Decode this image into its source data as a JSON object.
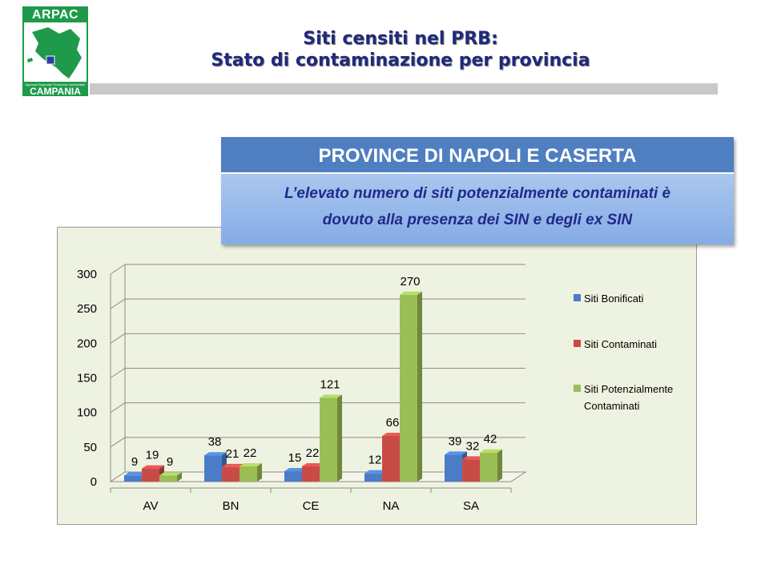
{
  "logo": {
    "top_text": "ARPAC",
    "agency_text": "Agenzia Regionale Protezione Ambientale",
    "bottom_text": "CAMPANIA"
  },
  "title": {
    "line1": "Siti censiti nel PRB:",
    "line2": "Stato di contaminazione per provincia"
  },
  "callout": {
    "heading": "PROVINCE DI NAPOLI E CASERTA",
    "body_line1": "L’elevato numero di siti potenzialmente contaminati è",
    "body_line2": "dovuto alla presenza dei SIN e degli ex SIN"
  },
  "colors": {
    "series": [
      "#4a7cc7",
      "#c94b47",
      "#9bbd56"
    ],
    "brand_green": "#1e9a4a",
    "title_blue": "#1f2a7c"
  },
  "chart_data": {
    "type": "bar",
    "categories": [
      "AV",
      "BN",
      "CE",
      "NA",
      "SA"
    ],
    "series": [
      {
        "name": "Siti Bonificati",
        "values": [
          9,
          38,
          15,
          12,
          39
        ]
      },
      {
        "name": "Siti Contaminati",
        "values": [
          19,
          21,
          22,
          66,
          32
        ]
      },
      {
        "name": "Siti Potenzialmente Contaminati",
        "values": [
          9,
          22,
          121,
          270,
          42
        ]
      }
    ],
    "yticks": [
      0,
      50,
      100,
      150,
      200,
      250,
      300
    ],
    "ylim": [
      0,
      300
    ],
    "grid": true,
    "legend_position": "right",
    "legend_lines": [
      [
        "Siti Bonificati"
      ],
      [
        "Siti Contaminati"
      ],
      [
        "Siti Potenzialmente",
        "Contaminati"
      ]
    ]
  }
}
